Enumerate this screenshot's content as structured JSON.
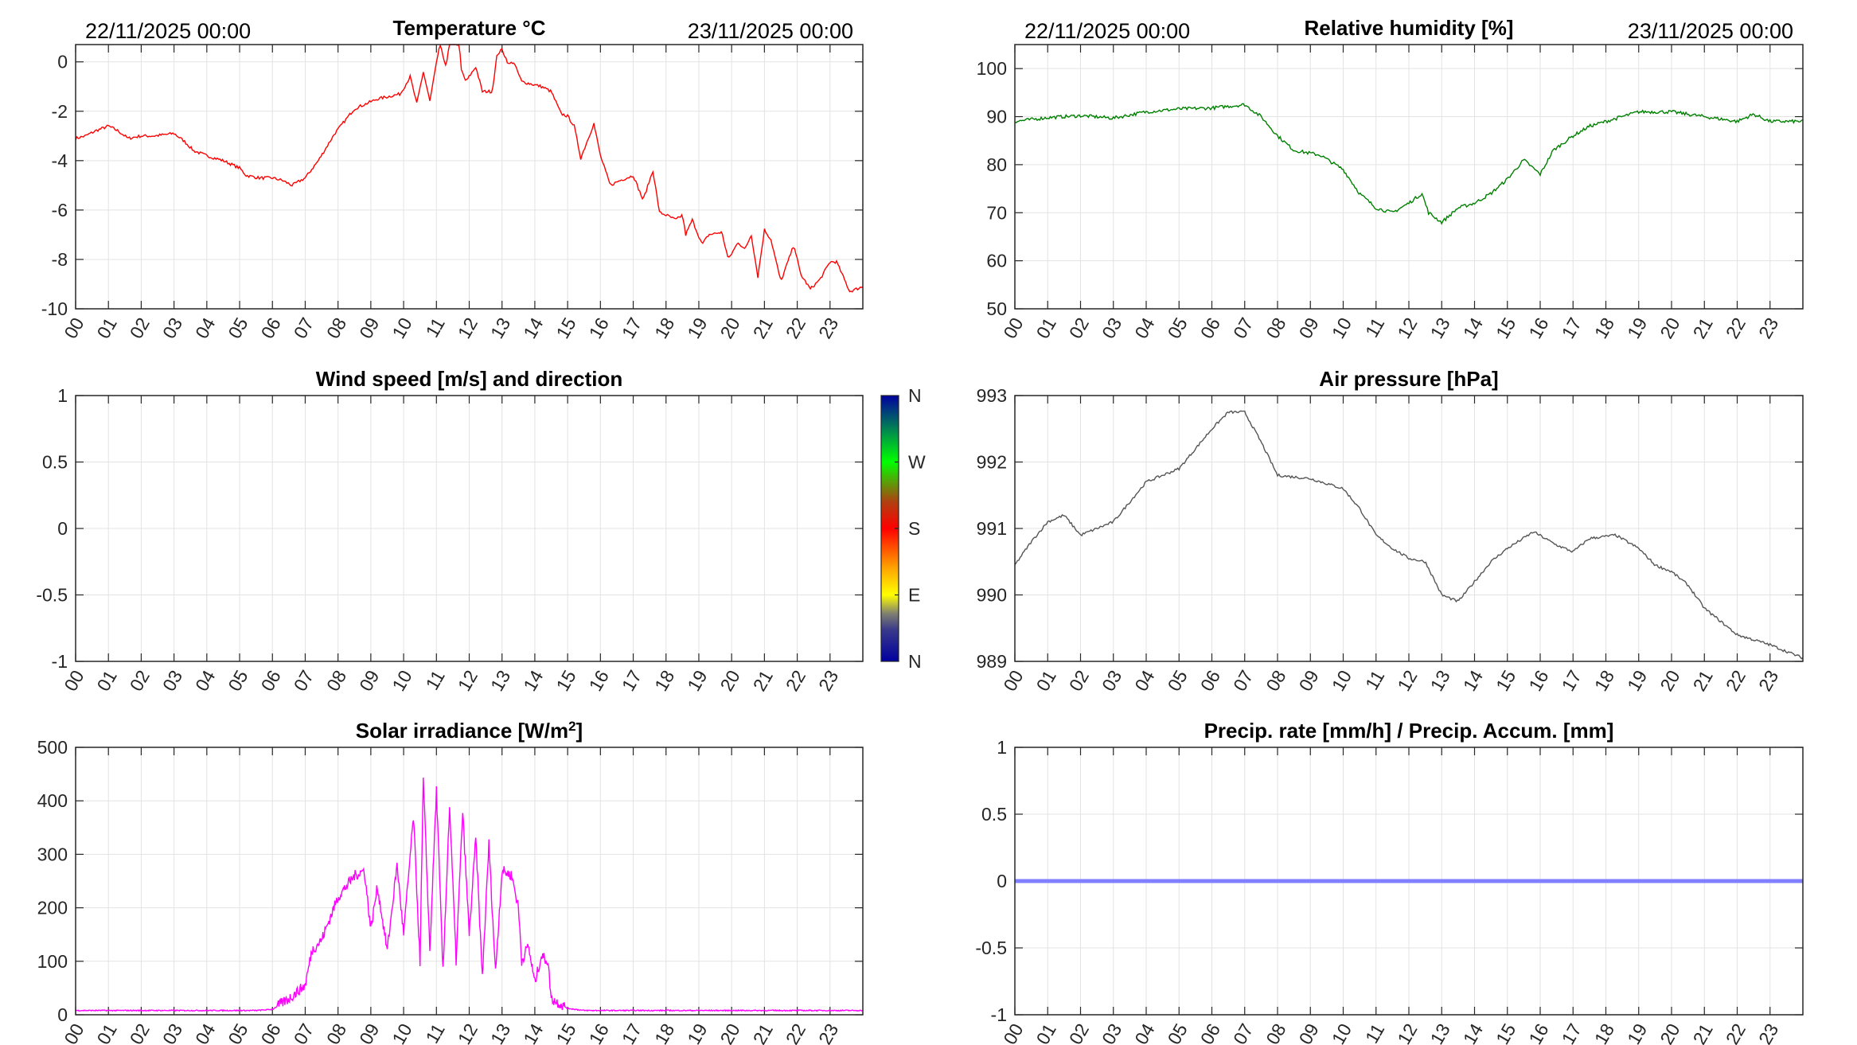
{
  "chart_data": [
    {
      "id": "temperature",
      "type": "line",
      "title": "Temperature °C",
      "date_left": "22/11/2025 00:00",
      "date_right": "23/11/2025 00:00",
      "xlim": [
        0,
        24
      ],
      "ylim": [
        -10,
        0.7
      ],
      "yticks": [
        0,
        -2,
        -4,
        -6,
        -8,
        -10
      ],
      "xtick_labels": [
        "00",
        "01",
        "02",
        "03",
        "04",
        "05",
        "06",
        "07",
        "08",
        "09",
        "10",
        "11",
        "12",
        "13",
        "14",
        "15",
        "16",
        "17",
        "18",
        "19",
        "20",
        "21",
        "22",
        "23"
      ],
      "color": "#ff0000",
      "x": [
        0,
        0.3,
        0.6,
        1.0,
        1.3,
        1.6,
        2.0,
        2.4,
        3.0,
        3.3,
        3.6,
        4.0,
        4.5,
        5.0,
        5.2,
        5.6,
        6.0,
        6.3,
        6.6,
        7.0,
        7.4,
        7.9,
        8.5,
        9.2,
        9.9,
        10.2,
        10.4,
        10.6,
        10.8,
        11.1,
        11.3,
        11.4,
        11.7,
        11.75,
        11.9,
        12.2,
        12.4,
        12.7,
        12.85,
        13.0,
        13.2,
        13.35,
        13.6,
        13.9,
        14.2,
        14.5,
        14.8,
        15.0,
        15.2,
        15.4,
        15.8,
        16.0,
        16.3,
        16.6,
        17.0,
        17.3,
        17.6,
        17.8,
        18.0,
        18.3,
        18.5,
        18.6,
        18.8,
        19.1,
        19.3,
        19.7,
        19.9,
        20.2,
        20.4,
        20.6,
        20.8,
        21.0,
        21.2,
        21.5,
        21.9,
        22.1,
        22.4,
        22.7,
        23.0,
        23.2,
        23.4,
        23.6,
        24.0
      ],
      "y": [
        -3.1,
        -3.0,
        -2.8,
        -2.6,
        -2.8,
        -3.1,
        -3.0,
        -3.0,
        -2.9,
        -3.2,
        -3.6,
        -3.8,
        -4.0,
        -4.3,
        -4.6,
        -4.7,
        -4.7,
        -4.8,
        -5.0,
        -4.7,
        -4.0,
        -2.9,
        -1.9,
        -1.5,
        -1.3,
        -0.6,
        -1.7,
        -0.4,
        -1.6,
        0.7,
        -0.2,
        0.8,
        0.7,
        -0.3,
        -0.8,
        -0.2,
        -1.2,
        -1.2,
        0.3,
        0.5,
        -0.1,
        0.0,
        -0.8,
        -0.9,
        -1.0,
        -1.2,
        -2.1,
        -2.2,
        -2.6,
        -3.9,
        -2.5,
        -3.8,
        -5.0,
        -4.8,
        -4.6,
        -5.6,
        -4.4,
        -6.1,
        -6.2,
        -6.4,
        -6.2,
        -7.0,
        -6.4,
        -7.4,
        -7.0,
        -6.9,
        -8.0,
        -7.3,
        -7.6,
        -7.0,
        -8.7,
        -6.8,
        -7.2,
        -8.9,
        -7.4,
        -8.6,
        -9.2,
        -8.8,
        -8.1,
        -8.1,
        -8.7,
        -9.3,
        -9.1
      ]
    },
    {
      "id": "humidity",
      "type": "line",
      "title": "Relative humidity [%]",
      "date_left": "22/11/2025 00:00",
      "date_right": "23/11/2025 00:00",
      "xlim": [
        0,
        24
      ],
      "ylim": [
        50,
        105
      ],
      "yticks": [
        100,
        90,
        80,
        70,
        60,
        50
      ],
      "xtick_labels": [
        "00",
        "01",
        "02",
        "03",
        "04",
        "05",
        "06",
        "07",
        "08",
        "09",
        "10",
        "11",
        "12",
        "13",
        "14",
        "15",
        "16",
        "17",
        "18",
        "19",
        "20",
        "21",
        "22",
        "23"
      ],
      "color": "#008000",
      "x": [
        0,
        1,
        2,
        3,
        4,
        5,
        6,
        7,
        7.5,
        8,
        8.5,
        9.3,
        10,
        10.5,
        11,
        11.5,
        12,
        12.4,
        12.6,
        13,
        13.5,
        14,
        14.5,
        15,
        15.5,
        16,
        16.4,
        17,
        17.5,
        18,
        19,
        20,
        21,
        22,
        22.5,
        23,
        24
      ],
      "y": [
        89,
        89.8,
        90.2,
        89.7,
        91,
        91.6,
        91.8,
        92.5,
        90,
        86,
        83,
        82,
        79,
        74,
        71,
        70,
        72,
        74,
        70,
        68,
        71,
        72,
        74,
        77,
        81,
        78,
        83,
        86,
        88,
        89,
        91,
        91,
        90,
        89,
        90.5,
        89,
        89
      ]
    },
    {
      "id": "wind",
      "type": "line",
      "title": "Wind speed [m/s] and direction",
      "xlim": [
        0,
        24
      ],
      "ylim": [
        -1,
        1
      ],
      "yticks": [
        1,
        0.5,
        0,
        -0.5,
        -1
      ],
      "xtick_labels": [
        "00",
        "01",
        "02",
        "03",
        "04",
        "05",
        "06",
        "07",
        "08",
        "09",
        "10",
        "11",
        "12",
        "13",
        "14",
        "15",
        "16",
        "17",
        "18",
        "19",
        "20",
        "21",
        "22",
        "23"
      ],
      "colorbar_labels": [
        "N",
        "W",
        "S",
        "E",
        "N"
      ],
      "x": [],
      "y": []
    },
    {
      "id": "pressure",
      "type": "line",
      "title": "Air pressure [hPa]",
      "xlim": [
        0,
        24
      ],
      "ylim": [
        989,
        993
      ],
      "yticks": [
        993,
        992,
        991,
        990,
        989
      ],
      "xtick_labels": [
        "00",
        "01",
        "02",
        "03",
        "04",
        "05",
        "06",
        "07",
        "08",
        "09",
        "10",
        "11",
        "12",
        "13",
        "14",
        "15",
        "16",
        "17",
        "18",
        "19",
        "20",
        "21",
        "22",
        "23"
      ],
      "color": "#555555",
      "x": [
        0,
        0.5,
        1,
        1.5,
        2,
        2.5,
        3,
        3.5,
        4,
        5,
        5.5,
        6,
        6.5,
        7,
        7.5,
        8,
        9,
        10,
        10.5,
        11,
        11.5,
        12,
        12.5,
        13,
        13.5,
        14,
        14.5,
        15,
        15.8,
        16.5,
        17,
        17.5,
        18.3,
        19,
        19.5,
        20,
        20.5,
        21,
        21.5,
        22,
        23,
        24
      ],
      "y": [
        990.45,
        990.8,
        991.1,
        991.2,
        990.9,
        991.0,
        991.1,
        991.4,
        991.7,
        991.9,
        992.2,
        992.5,
        992.75,
        992.75,
        992.3,
        991.8,
        991.75,
        991.6,
        991.3,
        990.9,
        990.7,
        990.55,
        990.5,
        990.0,
        989.9,
        990.2,
        990.5,
        990.7,
        990.95,
        990.75,
        990.65,
        990.85,
        990.9,
        990.7,
        990.45,
        990.35,
        990.15,
        989.8,
        989.6,
        989.4,
        989.25,
        989.05
      ]
    },
    {
      "id": "solar",
      "type": "line",
      "title": "Solar irradiance [W/m",
      "title_sup": "2",
      "title_end": "]",
      "xlim": [
        0,
        24
      ],
      "ylim": [
        0,
        500
      ],
      "yticks": [
        500,
        400,
        300,
        200,
        100,
        0
      ],
      "xtick_labels": [
        "00",
        "01",
        "02",
        "03",
        "04",
        "05",
        "06",
        "07",
        "08",
        "09",
        "10",
        "11",
        "12",
        "13",
        "14",
        "15",
        "16",
        "17",
        "18",
        "19",
        "20",
        "21",
        "22",
        "23"
      ],
      "color": "#ff00ff",
      "x": [
        0,
        5.5,
        6,
        6.5,
        7,
        7.2,
        7.5,
        8,
        8.5,
        8.8,
        9,
        9.2,
        9.5,
        9.8,
        10,
        10.3,
        10.5,
        10.6,
        10.8,
        11,
        11.2,
        11.4,
        11.6,
        11.8,
        12,
        12.2,
        12.4,
        12.6,
        12.8,
        13,
        13.3,
        13.5,
        13.6,
        13.8,
        14,
        14.2,
        14.4,
        14.5,
        15,
        15.5,
        24
      ],
      "y": [
        8,
        8,
        10,
        30,
        55,
        120,
        140,
        220,
        260,
        270,
        160,
        240,
        120,
        280,
        150,
        370,
        100,
        440,
        120,
        420,
        80,
        390,
        100,
        380,
        150,
        330,
        70,
        320,
        80,
        270,
        260,
        200,
        100,
        130,
        60,
        110,
        100,
        30,
        12,
        8,
        8
      ]
    },
    {
      "id": "precip",
      "type": "line",
      "title": "Precip. rate [mm/h] / Precip. Accum. [mm]",
      "xlim": [
        0,
        24
      ],
      "ylim": [
        -1,
        1
      ],
      "yticks": [
        1,
        0.5,
        0,
        -0.5,
        -1
      ],
      "xtick_labels": [
        "00",
        "01",
        "02",
        "03",
        "04",
        "05",
        "06",
        "07",
        "08",
        "09",
        "10",
        "11",
        "12",
        "13",
        "14",
        "15",
        "16",
        "17",
        "18",
        "19",
        "20",
        "21",
        "22",
        "23"
      ],
      "color": "#7f7fff",
      "x": [
        0,
        24
      ],
      "y": [
        0,
        0
      ]
    }
  ]
}
